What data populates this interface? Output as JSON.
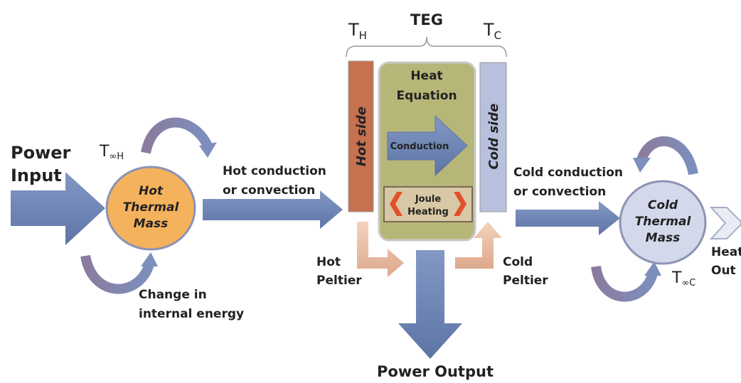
{
  "power_input": [
    "Power",
    "Input"
  ],
  "hot_mass": {
    "label": [
      "Hot",
      "Thermal",
      "Mass"
    ],
    "temperature": {
      "main": "T",
      "sub": "∞H"
    },
    "note": [
      "Change in",
      "internal energy"
    ]
  },
  "hot_transfer": [
    "Hot conduction",
    "or convection"
  ],
  "teg": {
    "title": "TEG",
    "t_hot": {
      "main": "T",
      "sub": "H"
    },
    "t_cold": {
      "main": "T",
      "sub": "C"
    },
    "hot_side": "Hot side",
    "cold_side": "Cold side",
    "heat_equation": [
      "Heat",
      "Equation"
    ],
    "conduction": "Conduction",
    "joule_heating": [
      "Joule",
      "Heating"
    ],
    "hot_peltier": [
      "Hot",
      "Peltier"
    ],
    "cold_peltier": [
      "Cold",
      "Peltier"
    ]
  },
  "power_output": "Power Output",
  "cold_transfer": [
    "Cold conduction",
    "or convection"
  ],
  "cold_mass": {
    "label": [
      "Cold",
      "Thermal",
      "Mass"
    ],
    "temperature": {
      "main": "T",
      "sub": "∞C"
    },
    "heat_out": [
      "Heat",
      "Out"
    ]
  }
}
